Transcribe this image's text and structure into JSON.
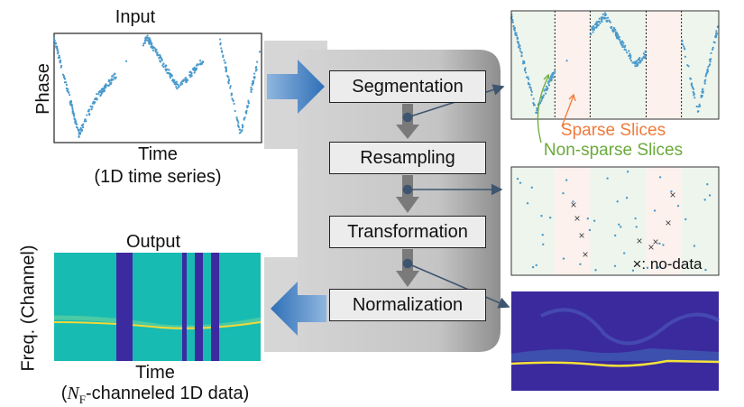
{
  "input": {
    "title": "Input",
    "ylabel": "Phase",
    "xlabel": "Time",
    "caption": "(1D time series)"
  },
  "output": {
    "title": "Output",
    "ylabel": "Freq. (Channel)",
    "xlabel": "Time",
    "caption_prefix": "(",
    "caption_var": "N",
    "caption_sub": "F",
    "caption_suffix": "-channeled 1D data)"
  },
  "pipeline": {
    "steps": [
      "Segmentation",
      "Resampling",
      "Transformation",
      "Normalization"
    ]
  },
  "annotations": {
    "sparse": "Sparse Slices",
    "non_sparse": "Non-sparse Slices",
    "no_data": "×: no-data"
  },
  "colors": {
    "arrow_blue": "#3a7cc4",
    "sparse": "#f07a3a",
    "non_sparse": "#6aaa3a",
    "point": "#4a9acc",
    "sparse_bg": "#fcf1ec",
    "nonsparse_bg": "#eef5ec",
    "spec_bg": "#17bbb2",
    "spec_gap": "#3b2aa0"
  }
}
